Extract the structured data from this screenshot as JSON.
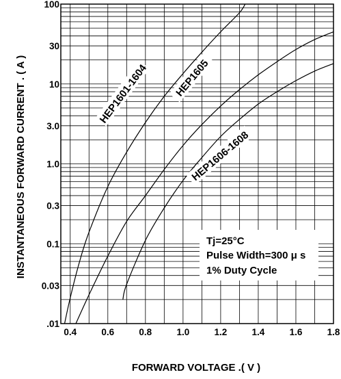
{
  "chart_data": {
    "type": "line",
    "xlabel": "FORWARD   VOLTAGE .( V )",
    "ylabel": "INSTANTANEOUS  FORWARD  CURRENT . ( A )",
    "xscale": "linear",
    "yscale": "log",
    "xlim": [
      0.35,
      1.8
    ],
    "ylim": [
      0.01,
      100
    ],
    "grid": true,
    "x_ticks": [
      "0.4",
      "0.6",
      "0.8",
      "1.0",
      "1.2",
      "1.4",
      "1.6",
      "1.8"
    ],
    "y_ticks": [
      {
        "value": 100,
        "label": "100"
      },
      {
        "value": 30,
        "label": "30"
      },
      {
        "value": 10,
        "label": "10"
      },
      {
        "value": 3,
        "label": "3.0"
      },
      {
        "value": 1,
        "label": "1.0"
      },
      {
        "value": 0.3,
        "label": "0.3"
      },
      {
        "value": 0.1,
        "label": "0.1"
      },
      {
        "value": 0.03,
        "label": "0.03"
      },
      {
        "value": 0.01,
        "label": ".01"
      }
    ],
    "series": [
      {
        "name": "HEP1601-1604",
        "x": [
          0.37,
          0.4,
          0.45,
          0.5,
          0.6,
          0.7,
          0.8,
          0.9,
          1.0,
          1.1,
          1.2,
          1.3,
          1.33
        ],
        "y": [
          0.01,
          0.021,
          0.06,
          0.14,
          0.52,
          1.4,
          3.3,
          7.0,
          13.5,
          25,
          45,
          78,
          100
        ]
      },
      {
        "name": "HEP1605",
        "x": [
          0.43,
          0.5,
          0.6,
          0.7,
          0.8,
          0.9,
          1.0,
          1.1,
          1.2,
          1.3,
          1.4,
          1.5,
          1.6,
          1.7,
          1.8
        ],
        "y": [
          0.01,
          0.023,
          0.07,
          0.19,
          0.4,
          0.85,
          1.7,
          3.1,
          5.3,
          8.5,
          13,
          19,
          27,
          36,
          45
        ]
      },
      {
        "name": "HEP1606-1608",
        "x": [
          0.68,
          0.7,
          0.8,
          0.9,
          1.0,
          1.1,
          1.2,
          1.3,
          1.4,
          1.5,
          1.6,
          1.7,
          1.8
        ],
        "y": [
          0.02,
          0.031,
          0.11,
          0.28,
          0.62,
          1.2,
          2.2,
          3.6,
          5.6,
          8.0,
          11,
          14.5,
          18
        ]
      }
    ],
    "annotation": [
      "Tj=25°C",
      "Pulse Width=300 μ s",
      "1% Duty  Cycle"
    ]
  }
}
